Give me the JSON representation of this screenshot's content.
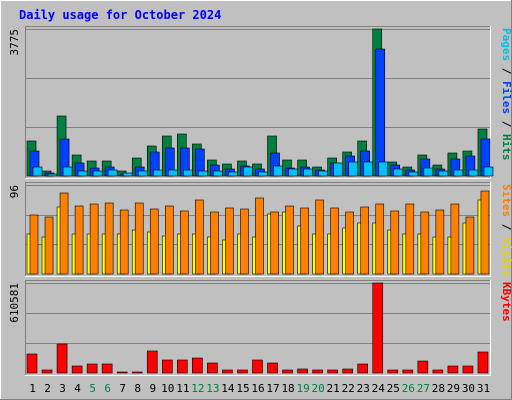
{
  "chart_data": {
    "type": "bar",
    "title": "Daily usage for October 2024",
    "categories": [
      "1",
      "2",
      "3",
      "4",
      "5",
      "6",
      "7",
      "8",
      "9",
      "10",
      "11",
      "12",
      "13",
      "14",
      "15",
      "16",
      "17",
      "18",
      "19",
      "20",
      "21",
      "22",
      "23",
      "24",
      "25",
      "26",
      "27",
      "28",
      "29",
      "30",
      "31"
    ],
    "weekend_days": [
      "5",
      "6",
      "12",
      "13",
      "19",
      "20",
      "26",
      "27"
    ],
    "panels": [
      {
        "name": "hits-files-pages",
        "ymax_label": "3775",
        "ylim": [
          0,
          3775
        ],
        "right_labels": [
          "Pages",
          "Files",
          "Hits"
        ],
        "series": [
          {
            "name": "Hits",
            "color": "#008040",
            "values": [
              900,
              130,
              1530,
              540,
              380,
              380,
              120,
              460,
              780,
              1040,
              1070,
              820,
              400,
              320,
              380,
              320,
              1020,
              400,
              400,
              220,
              450,
              620,
              900,
              3775,
              370,
              230,
              550,
              290,
              590,
              640,
              1210
            ]
          },
          {
            "name": "Files",
            "color": "#0040ff",
            "values": [
              650,
              70,
              950,
              340,
              210,
              220,
              60,
              240,
              620,
              720,
              720,
              700,
              290,
              180,
              250,
              190,
              600,
              200,
              240,
              150,
              330,
              510,
              630,
              3260,
              280,
              160,
              440,
              190,
              440,
              510,
              940
            ]
          },
          {
            "name": "Pages",
            "color": "#00c0ff",
            "values": [
              240,
              60,
              220,
              140,
              130,
              160,
              70,
              130,
              150,
              150,
              150,
              140,
              120,
              100,
              240,
              100,
              250,
              180,
              180,
              140,
              340,
              360,
              360,
              350,
              180,
              100,
              200,
              120,
              160,
              150,
              220
            ]
          }
        ]
      },
      {
        "name": "visits-sites",
        "ymax_label": "96",
        "ylim": [
          0,
          96
        ],
        "right_labels": [
          "Sites",
          "Visits"
        ],
        "series": [
          {
            "name": "Visits",
            "color": "#ffff00",
            "values": [
              43,
              40,
              72,
              43,
              43,
              43,
              43,
              47,
              45,
              41,
              43,
              43,
              40,
              37,
              43,
              40,
              65,
              67,
              52,
              43,
              43,
              50,
              55,
              55,
              47,
              43,
              43,
              40,
              40,
              55,
              80
            ]
          },
          {
            "name": "Sites",
            "color": "#ff8000",
            "values": [
              64,
              61,
              87,
              73,
              76,
              77,
              69,
              77,
              70,
              73,
              68,
              80,
              67,
              71,
              70,
              82,
              67,
              73,
              71,
              80,
              71,
              67,
              72,
              76,
              68,
              76,
              67,
              69,
              76,
              62,
              90
            ]
          }
        ]
      },
      {
        "name": "kbytes",
        "ymax_label": "610581",
        "ylim": [
          0,
          610581
        ],
        "right_labels": [
          "KBytes"
        ],
        "series": [
          {
            "name": "KBytes",
            "color": "#ff0000",
            "values": [
              130000,
              20000,
              200000,
              50000,
              60000,
              60000,
              10000,
              10000,
              150000,
              90000,
              90000,
              100000,
              70000,
              20000,
              20000,
              90000,
              70000,
              20000,
              30000,
              20000,
              20000,
              30000,
              60000,
              610581,
              20000,
              20000,
              80000,
              20000,
              50000,
              50000,
              140000
            ]
          }
        ]
      }
    ]
  }
}
